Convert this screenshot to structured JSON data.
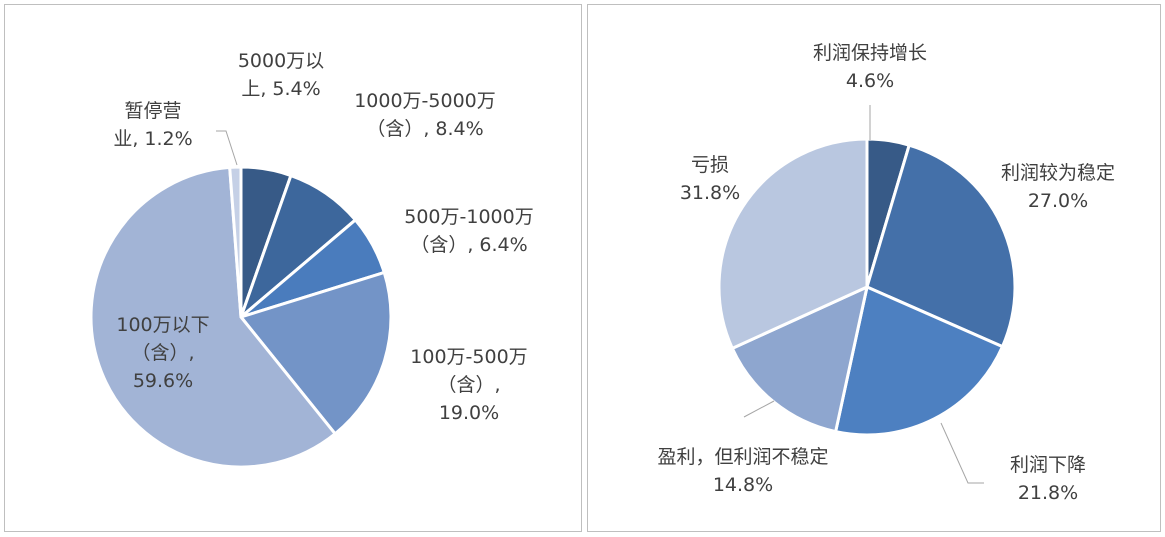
{
  "chart_data": [
    {
      "type": "pie",
      "title": "",
      "slices": [
        {
          "label": "5000万以上",
          "value": 5.4,
          "value_text": "5.4%",
          "color": "#375a87"
        },
        {
          "label": "1000万-5000万（含）",
          "value": 8.4,
          "value_text": "8.4%",
          "color": "#3d679c"
        },
        {
          "label": "500万-1000万（含）",
          "value": 6.4,
          "value_text": "6.4%",
          "color": "#4a7cbd"
        },
        {
          "label": "100万-500万（含）",
          "value": 19.0,
          "value_text": "19.0%",
          "color": "#7394c7"
        },
        {
          "label": "100万以下（含）",
          "value": 59.6,
          "value_text": "59.6%",
          "color": "#a2b4d6"
        },
        {
          "label": "暂停营业",
          "value": 1.2,
          "value_text": "1.2%",
          "color": "#c5d0e6"
        }
      ],
      "label_lines": [
        [
          "5000万以",
          "上, 5.4%"
        ],
        [
          "1000万-5000万",
          "（含）, 8.4%"
        ],
        [
          "500万-1000万",
          "（含）, 6.4%"
        ],
        [
          "100万-500万",
          "（含）,",
          "19.0%"
        ],
        [
          "100万以下",
          "（含）,",
          "59.6%"
        ],
        [
          "暂停营",
          "业, 1.2%"
        ]
      ]
    },
    {
      "type": "pie",
      "title": "",
      "slices": [
        {
          "label": "利润保持增长",
          "value": 4.6,
          "value_text": "4.6%",
          "color": "#375a87"
        },
        {
          "label": "利润较为稳定",
          "value": 27.0,
          "value_text": "27.0%",
          "color": "#4470a9"
        },
        {
          "label": "利润下降",
          "value": 21.8,
          "value_text": "21.8%",
          "color": "#4d80c1"
        },
        {
          "label": "盈利，但利润不稳定",
          "value": 14.8,
          "value_text": "14.8%",
          "color": "#8ea6cf"
        },
        {
          "label": "亏损",
          "value": 31.8,
          "value_text": "31.8%",
          "color": "#b9c7e0"
        }
      ],
      "label_lines": [
        [
          "利润保持增长",
          "4.6%"
        ],
        [
          "利润较为稳定",
          "27.0%"
        ],
        [
          "利润下降",
          "21.8%"
        ],
        [
          "盈利，但利润不稳定",
          "14.8%"
        ],
        [
          "亏损",
          "31.8%"
        ]
      ]
    }
  ]
}
